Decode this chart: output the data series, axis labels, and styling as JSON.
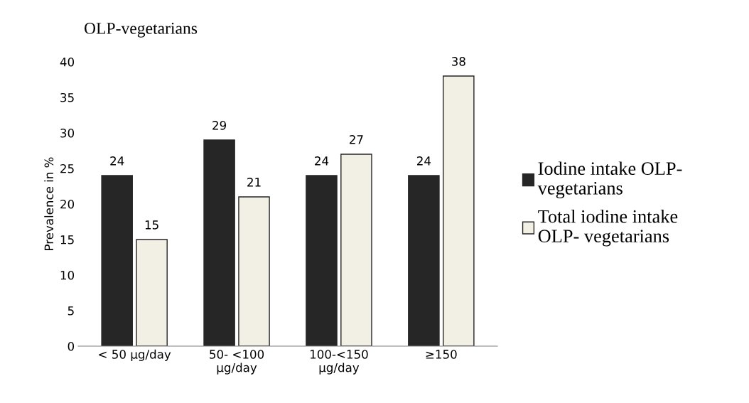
{
  "chart_data": {
    "type": "bar",
    "title": "OLP-vegetarians",
    "ylabel": "Prevalence in %",
    "categories": [
      "< 50 µg/day",
      "50- <100\nµg/day",
      "100-<150\nµg/day",
      "≥150"
    ],
    "series": [
      {
        "name": "Iodine intake OLP-\nvegetarians",
        "color": "#262626",
        "values": [
          24,
          29,
          24,
          24
        ]
      },
      {
        "name": "Total iodine intake\nOLP- vegetarians",
        "color": "#f2efe4",
        "values": [
          15,
          21,
          27,
          38
        ]
      }
    ],
    "ylim": [
      0,
      40
    ],
    "yticks": [
      0,
      5,
      10,
      15,
      20,
      25,
      30,
      35,
      40
    ],
    "grid": false,
    "legend": "right",
    "data_labels": true
  }
}
